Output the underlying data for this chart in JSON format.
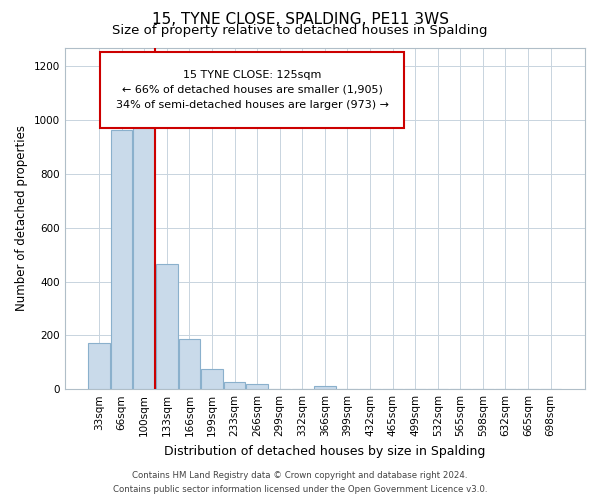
{
  "title": "15, TYNE CLOSE, SPALDING, PE11 3WS",
  "subtitle": "Size of property relative to detached houses in Spalding",
  "xlabel": "Distribution of detached houses by size in Spalding",
  "ylabel": "Number of detached properties",
  "bar_labels": [
    "33sqm",
    "66sqm",
    "100sqm",
    "133sqm",
    "166sqm",
    "199sqm",
    "233sqm",
    "266sqm",
    "299sqm",
    "332sqm",
    "366sqm",
    "399sqm",
    "432sqm",
    "465sqm",
    "499sqm",
    "532sqm",
    "565sqm",
    "598sqm",
    "632sqm",
    "665sqm",
    "698sqm"
  ],
  "bar_values": [
    170,
    965,
    1000,
    465,
    185,
    75,
    25,
    18,
    0,
    0,
    12,
    0,
    0,
    0,
    0,
    0,
    0,
    0,
    0,
    0,
    0
  ],
  "bar_color": "#c9daea",
  "bar_edge_color": "#8ab0cc",
  "vline_color": "#cc0000",
  "vline_x_index": 2,
  "ylim": [
    0,
    1270
  ],
  "yticks": [
    0,
    200,
    400,
    600,
    800,
    1000,
    1200
  ],
  "annotation_line1": "15 TYNE CLOSE: 125sqm",
  "annotation_line2": "← 66% of detached houses are smaller (1,905)",
  "annotation_line3": "34% of semi-detached houses are larger (973) →",
  "footnote1": "Contains HM Land Registry data © Crown copyright and database right 2024.",
  "footnote2": "Contains public sector information licensed under the Open Government Licence v3.0.",
  "grid_color": "#c8d4df",
  "title_fontsize": 11,
  "subtitle_fontsize": 9.5,
  "xlabel_fontsize": 9,
  "ylabel_fontsize": 8.5,
  "tick_fontsize": 7.5,
  "footnote_fontsize": 6.2
}
